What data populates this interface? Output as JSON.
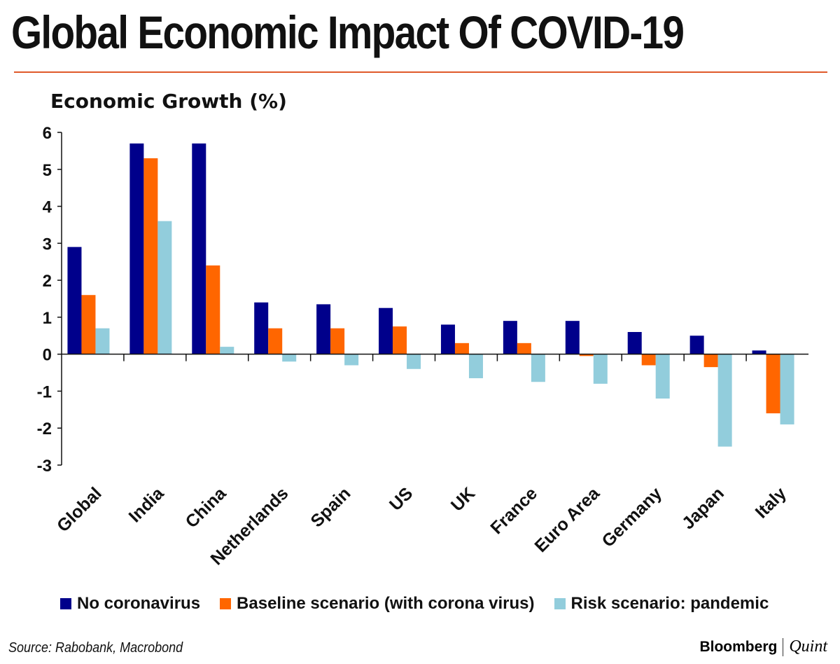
{
  "title": "Global Economic Impact Of COVID-19",
  "source": "Source: Rabobank, Macrobond",
  "brand": {
    "left": "Bloomberg",
    "right": "Quint"
  },
  "colors": {
    "accent_rule": "#e0592a"
  },
  "chart_data": {
    "type": "bar",
    "title": "Economic Growth (%)",
    "xlabel": "",
    "ylabel": "",
    "ylim": [
      -3,
      6
    ],
    "yticks": [
      6,
      5,
      4,
      3,
      2,
      1,
      0,
      -1,
      -2,
      -3
    ],
    "grid": false,
    "legend_position": "bottom",
    "categories": [
      "Global",
      "India",
      "China",
      "Netherlands",
      "Spain",
      "US",
      "UK",
      "France",
      "Euro Area",
      "Germany",
      "Japan",
      "Italy"
    ],
    "series": [
      {
        "name": "No coronavirus",
        "color": "#00008b",
        "values": [
          2.9,
          5.7,
          5.7,
          1.4,
          1.35,
          1.25,
          0.8,
          0.9,
          0.9,
          0.6,
          0.5,
          0.1
        ]
      },
      {
        "name": "Baseline scenario (with corona virus)",
        "color": "#ff6600",
        "values": [
          1.6,
          5.3,
          2.4,
          0.7,
          0.7,
          0.75,
          0.3,
          0.3,
          -0.05,
          -0.3,
          -0.35,
          -1.6
        ]
      },
      {
        "name": "Risk scenario: pandemic",
        "color": "#92cddc",
        "values": [
          0.7,
          3.6,
          0.2,
          -0.2,
          -0.3,
          -0.4,
          -0.65,
          -0.75,
          -0.8,
          -1.2,
          -2.5,
          -1.9
        ]
      }
    ]
  }
}
